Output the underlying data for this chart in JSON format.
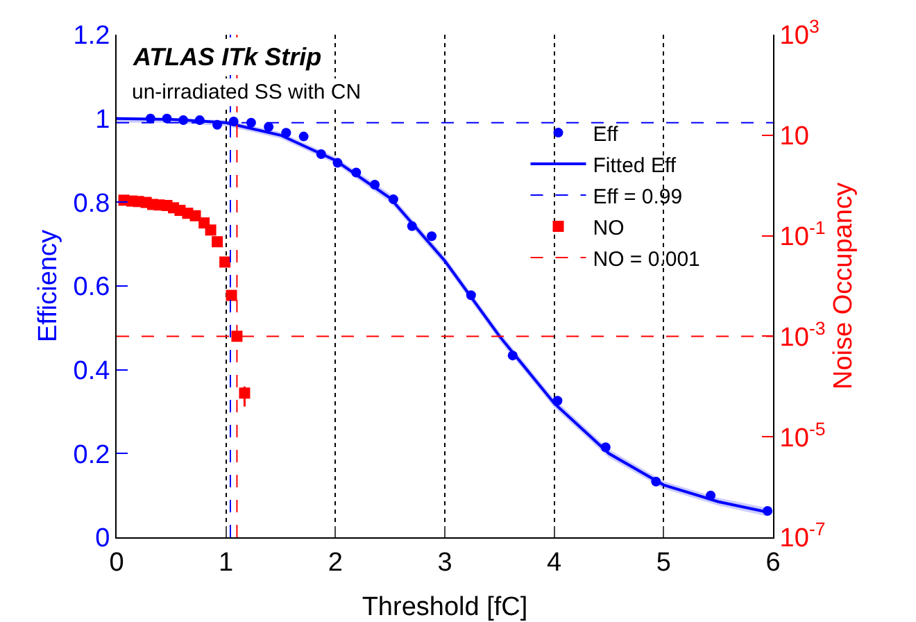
{
  "chart_data": {
    "type": "scatter",
    "xlabel": "Threshold [fC]",
    "ylabel": "Efficiency",
    "y2label": "Noise Occupancy",
    "annotations": [
      "ATLAS ITk Strip",
      "un-irradiated SS with CN"
    ],
    "xlim": [
      0,
      6
    ],
    "xticks": [
      0,
      1,
      2,
      3,
      4,
      5,
      6
    ],
    "ylim": [
      0,
      1.2
    ],
    "yticks": [
      0,
      0.2,
      0.4,
      0.6,
      0.8,
      1,
      1.2
    ],
    "y2lim": [
      1e-07,
      1000
    ],
    "y2ticks": [
      {
        "value": 1e-07,
        "label": "10$^{-7}$"
      },
      {
        "value": 1e-05,
        "label": "10$^{-5}$"
      },
      {
        "value": 0.001,
        "label": "10$^{-3}$"
      },
      {
        "value": 0.1,
        "label": "10$^{-1}$"
      },
      10,
      {
        "value": 1000,
        "label": "10$^{3}$"
      }
    ],
    "log": "y2",
    "grid": "x",
    "legend": "right",
    "series": [
      {
        "name": "Eff",
        "marker": "circle",
        "color": "#0000ff",
        "x": [
          0.31,
          0.46,
          0.61,
          0.76,
          0.92,
          1.07,
          1.23,
          1.39,
          1.55,
          1.71,
          1.87,
          2.02,
          2.19,
          2.36,
          2.53,
          2.7,
          2.88,
          3.24,
          3.62,
          4.03,
          4.47,
          4.93,
          5.43,
          5.95
        ],
        "values": [
          1.0,
          1.0,
          0.996,
          0.996,
          0.985,
          0.993,
          0.99,
          0.98,
          0.966,
          0.957,
          0.915,
          0.894,
          0.871,
          0.842,
          0.807,
          0.743,
          0.719,
          0.578,
          0.434,
          0.326,
          0.215,
          0.133,
          0.1,
          0.063
        ],
        "errors": [
          null,
          null,
          null,
          null,
          null,
          null,
          null,
          null,
          null,
          null,
          null,
          null,
          null,
          null,
          null,
          0.01,
          0.01,
          0.01,
          0.01,
          0.01,
          0.01,
          0.01,
          0.01,
          0.01
        ]
      },
      {
        "name": "Fitted Eff",
        "type": "line",
        "line_style": "solid",
        "color": "#0000ff",
        "x": [
          0,
          0.5,
          1,
          1.5,
          2,
          2.5,
          3,
          3.5,
          4,
          4.5,
          5,
          5.5,
          5.95
        ],
        "values": [
          1.0,
          0.998,
          0.99,
          0.96,
          0.9,
          0.81,
          0.66,
          0.48,
          0.32,
          0.2,
          0.125,
          0.085,
          0.06
        ],
        "lower": [
          0.99,
          0.99,
          0.982,
          0.952,
          0.892,
          0.8,
          0.65,
          0.47,
          0.31,
          0.19,
          0.116,
          0.076,
          0.05
        ],
        "upper": [
          1.0,
          1.0,
          0.996,
          0.967,
          0.908,
          0.82,
          0.67,
          0.49,
          0.33,
          0.21,
          0.134,
          0.094,
          0.07
        ]
      },
      {
        "name": "NO",
        "marker": "square",
        "axis": "y2",
        "color": "#ff0000",
        "x": [
          0.067,
          0.14,
          0.2,
          0.27,
          0.33,
          0.39,
          0.46,
          0.52,
          0.58,
          0.65,
          0.72,
          0.8,
          0.86,
          0.92,
          0.99,
          1.05,
          1.1,
          1.17
        ],
        "values": [
          0.51,
          0.49,
          0.48,
          0.46,
          0.42,
          0.41,
          0.4,
          0.36,
          0.32,
          0.28,
          0.25,
          0.18,
          0.13,
          0.076,
          0.03,
          0.0065,
          0.001,
          7.4e-05
        ],
        "errors": [
          null,
          null,
          null,
          null,
          null,
          null,
          null,
          null,
          null,
          null,
          null,
          null,
          null,
          null,
          null,
          null,
          null,
          [
            4e-05,
            0.0001
          ]
        ]
      }
    ],
    "ref_lines": [
      {
        "axis": "y",
        "value": 0.99,
        "label": "Eff = 0.99",
        "color": "#0000ff",
        "line_style": "dashed"
      },
      {
        "axis": "y2",
        "value": 0.001,
        "label": "NO = 0.001",
        "color": "#ff0000",
        "line_style": "dashed"
      },
      {
        "axis": "x",
        "value": 1.04,
        "color": "#0000ff",
        "line_style": "dashed"
      },
      {
        "axis": "x",
        "value": 1.1,
        "color": "#ff0000",
        "line_style": "dashed"
      }
    ]
  }
}
